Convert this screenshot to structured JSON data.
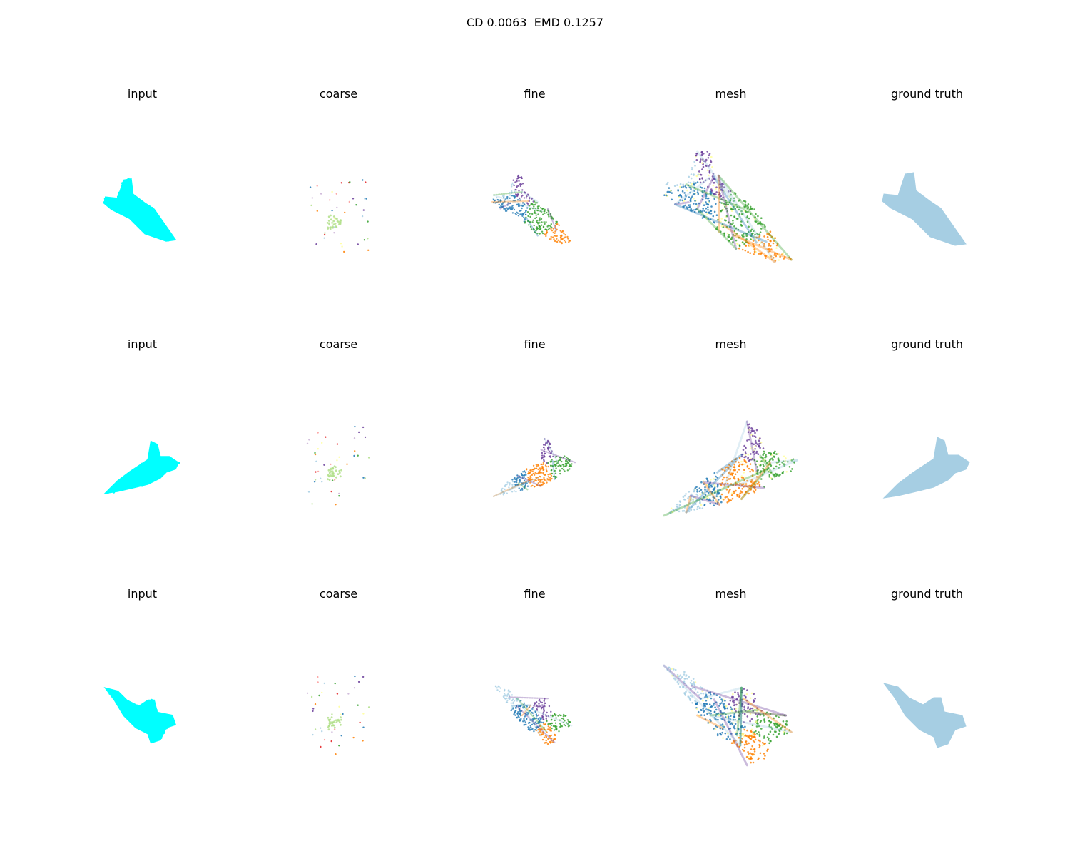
{
  "figure": {
    "title": "CD 0.0063  EMD 0.1257"
  },
  "colors": {
    "input": "#00ffff",
    "ground_truth": "#a6cee3",
    "palette": [
      "#a6cee3",
      "#1f78b4",
      "#b2df8a",
      "#33a02c",
      "#fb9a99",
      "#e31a1c",
      "#ff7f00",
      "#cab2d6",
      "#6a3d9a",
      "#ffff99"
    ]
  },
  "rows": [
    {
      "panels": [
        {
          "title": "input",
          "kind": "input"
        },
        {
          "title": "coarse",
          "kind": "coarse"
        },
        {
          "title": "fine",
          "kind": "fine"
        },
        {
          "title": "mesh",
          "kind": "mesh"
        },
        {
          "title": "ground truth",
          "kind": "ground_truth"
        }
      ]
    },
    {
      "panels": [
        {
          "title": "input",
          "kind": "input"
        },
        {
          "title": "coarse",
          "kind": "coarse"
        },
        {
          "title": "fine",
          "kind": "fine"
        },
        {
          "title": "mesh",
          "kind": "mesh"
        },
        {
          "title": "ground truth",
          "kind": "ground_truth"
        }
      ]
    },
    {
      "panels": [
        {
          "title": "input",
          "kind": "input"
        },
        {
          "title": "coarse",
          "kind": "coarse"
        },
        {
          "title": "fine",
          "kind": "fine"
        },
        {
          "title": "mesh",
          "kind": "mesh"
        },
        {
          "title": "ground truth",
          "kind": "ground_truth"
        }
      ]
    }
  ]
}
